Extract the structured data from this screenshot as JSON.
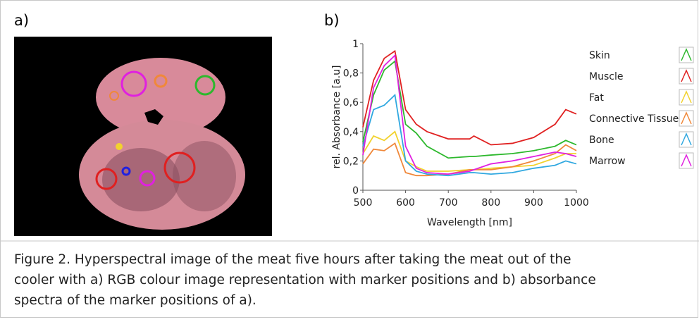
{
  "panel_a": {
    "label": "a)"
  },
  "panel_b": {
    "label": "b)"
  },
  "chart_data": {
    "type": "line",
    "x_label": "Wavelength [nm]",
    "y_label": "rel. Absorbance [a.u]",
    "x": [
      500,
      525,
      550,
      575,
      600,
      625,
      650,
      700,
      750,
      760,
      800,
      850,
      900,
      950,
      975,
      1000
    ],
    "series": [
      {
        "name": "Skin",
        "color": "#2db82d",
        "values": [
          0.33,
          0.65,
          0.82,
          0.88,
          0.45,
          0.39,
          0.3,
          0.22,
          0.23,
          0.23,
          0.24,
          0.25,
          0.27,
          0.3,
          0.34,
          0.31
        ]
      },
      {
        "name": "Muscle",
        "color": "#e02020",
        "values": [
          0.43,
          0.75,
          0.9,
          0.95,
          0.55,
          0.45,
          0.4,
          0.35,
          0.35,
          0.37,
          0.31,
          0.32,
          0.36,
          0.45,
          0.55,
          0.52
        ]
      },
      {
        "name": "Fat",
        "color": "#f2d22e",
        "values": [
          0.25,
          0.37,
          0.34,
          0.4,
          0.2,
          0.16,
          0.13,
          0.13,
          0.14,
          0.14,
          0.15,
          0.16,
          0.17,
          0.22,
          0.25,
          0.25
        ]
      },
      {
        "name": "Connective Tissue",
        "color": "#f0883a",
        "values": [
          0.18,
          0.28,
          0.27,
          0.32,
          0.12,
          0.1,
          0.1,
          0.11,
          0.14,
          0.14,
          0.14,
          0.16,
          0.2,
          0.25,
          0.31,
          0.27
        ]
      },
      {
        "name": "Bone",
        "color": "#30a8e0",
        "values": [
          0.3,
          0.55,
          0.58,
          0.65,
          0.2,
          0.13,
          0.11,
          0.1,
          0.12,
          0.12,
          0.11,
          0.12,
          0.15,
          0.17,
          0.2,
          0.18
        ]
      },
      {
        "name": "Marrow",
        "color": "#e020e0",
        "values": [
          0.24,
          0.7,
          0.85,
          0.92,
          0.3,
          0.15,
          0.12,
          0.11,
          0.13,
          0.14,
          0.18,
          0.2,
          0.23,
          0.26,
          0.25,
          0.23
        ]
      }
    ],
    "xlim": [
      500,
      1000
    ],
    "ylim": [
      0,
      1
    ],
    "xticks": [
      500,
      600,
      700,
      800,
      900,
      1000
    ],
    "yticks": [
      0,
      {
        "value": 0.2,
        "label": "0,2"
      },
      {
        "value": 0.4,
        "label": "0,4"
      },
      {
        "value": 0.6,
        "label": "0,6"
      },
      {
        "value": 0.8,
        "label": "0,8"
      },
      1
    ]
  },
  "caption": [
    "Figure 2. Hyperspectral image of the meat five hours after taking the meat out of the",
    "cooler with a) RGB colour image representation with marker positions and b) absorbance",
    "spectra of the marker positions of a)."
  ]
}
